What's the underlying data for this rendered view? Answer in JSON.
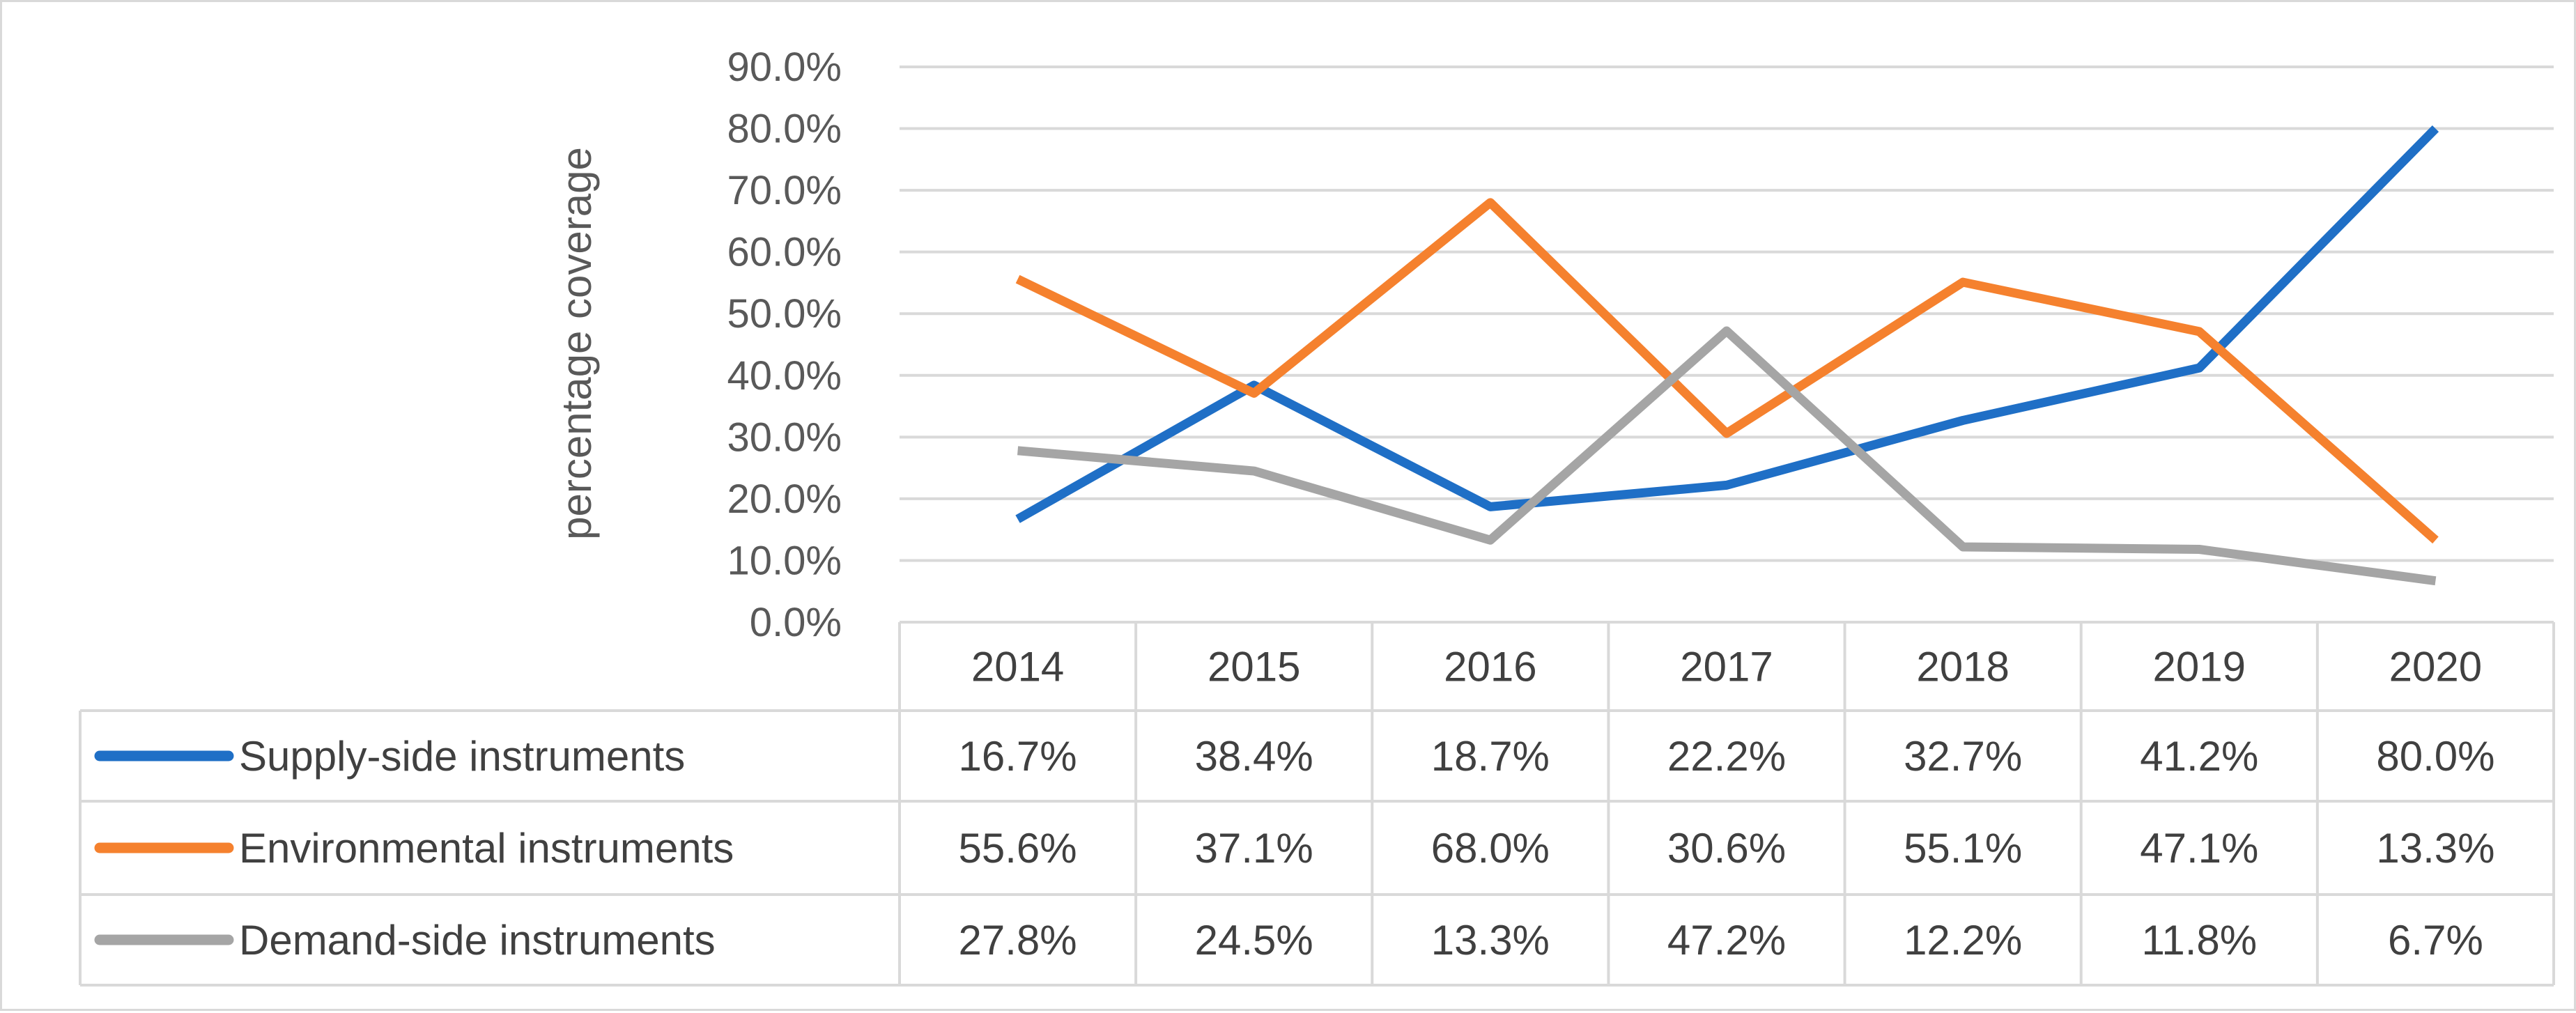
{
  "chart_data": {
    "type": "line",
    "title": "",
    "xlabel": "",
    "ylabel": "percentage coverage",
    "categories": [
      "2014",
      "2015",
      "2016",
      "2017",
      "2018",
      "2019",
      "2020"
    ],
    "ylim": [
      0,
      90
    ],
    "yticks": [
      "0.0%",
      "10.0%",
      "20.0%",
      "30.0%",
      "40.0%",
      "50.0%",
      "60.0%",
      "70.0%",
      "80.0%",
      "90.0%"
    ],
    "grid": true,
    "legend": "data-table",
    "series": [
      {
        "name": "Supply-side instruments",
        "color": "#1f6fc6",
        "values": [
          16.7,
          38.4,
          18.7,
          22.2,
          32.7,
          41.2,
          80.0
        ],
        "labels": [
          "16.7%",
          "38.4%",
          "18.7%",
          "22.2%",
          "32.7%",
          "41.2%",
          "80.0%"
        ]
      },
      {
        "name": "Environmental instruments",
        "color": "#f5812e",
        "values": [
          55.6,
          37.1,
          68.0,
          30.6,
          55.1,
          47.1,
          13.3
        ],
        "labels": [
          "55.6%",
          "37.1%",
          "68.0%",
          "30.6%",
          "55.1%",
          "47.1%",
          "13.3%"
        ]
      },
      {
        "name": "Demand-side instruments",
        "color": "#a5a5a5",
        "values": [
          27.8,
          24.5,
          13.3,
          47.2,
          12.2,
          11.8,
          6.7
        ],
        "labels": [
          "27.8%",
          "24.5%",
          "13.3%",
          "47.2%",
          "12.2%",
          "11.8%",
          "6.7%"
        ]
      }
    ]
  }
}
